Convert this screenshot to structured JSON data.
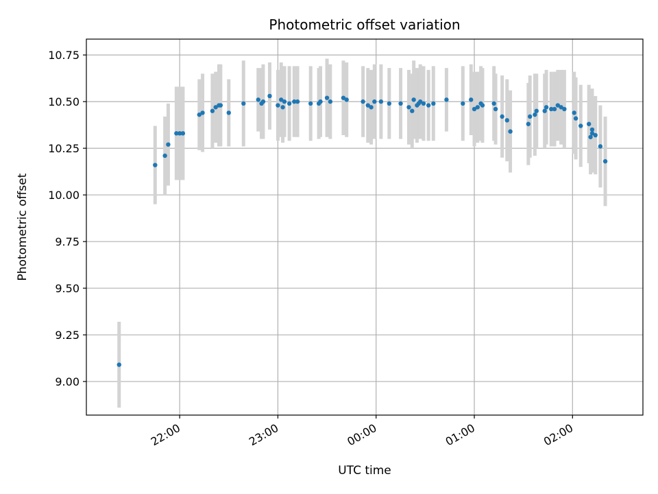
{
  "chart_data": {
    "type": "scatter",
    "title": "Photometric offset variation",
    "xlabel": "UTC time",
    "ylabel": "Photometric offset",
    "xlim": [
      "2023-01-01T21:03",
      "2023-01-02T02:43"
    ],
    "ylim": [
      8.82,
      10.835
    ],
    "x_ticks": [
      {
        "time": "2023-01-01T22:00",
        "label": "22:00"
      },
      {
        "time": "2023-01-01T23:00",
        "label": "23:00"
      },
      {
        "time": "2023-01-02T00:00",
        "label": "00:00"
      },
      {
        "time": "2023-01-02T01:00",
        "label": "01:00"
      },
      {
        "time": "2023-01-02T02:00",
        "label": "02:00"
      }
    ],
    "y_ticks": [
      {
        "value": 9.0,
        "label": "9.00"
      },
      {
        "value": 9.25,
        "label": "9.25"
      },
      {
        "value": 9.5,
        "label": "9.50"
      },
      {
        "value": 9.75,
        "label": "9.75"
      },
      {
        "value": 10.0,
        "label": "10.00"
      },
      {
        "value": 10.25,
        "label": "10.25"
      },
      {
        "value": 10.5,
        "label": "10.50"
      },
      {
        "value": 10.75,
        "label": "10.75"
      }
    ],
    "grid": true,
    "colors": {
      "marker": "#1f77b4",
      "errorbar": "#d3d3d3",
      "grid": "#b0b0b0"
    },
    "series": [
      {
        "x": [
          "2023-01-01T21:23",
          "2023-01-01T21:45",
          "2023-01-01T21:51",
          "2023-01-01T21:53",
          "2023-01-01T21:58",
          "2023-01-01T22:00",
          "2023-01-01T22:02",
          "2023-01-01T22:12",
          "2023-01-01T22:14",
          "2023-01-01T22:20",
          "2023-01-01T22:22",
          "2023-01-01T22:24",
          "2023-01-01T22:25",
          "2023-01-01T22:30",
          "2023-01-01T22:39",
          "2023-01-01T22:48",
          "2023-01-01T22:50",
          "2023-01-01T22:51",
          "2023-01-01T22:55",
          "2023-01-01T23:00",
          "2023-01-01T23:02",
          "2023-01-01T23:03",
          "2023-01-01T23:04",
          "2023-01-01T23:07",
          "2023-01-01T23:10",
          "2023-01-01T23:12",
          "2023-01-01T23:20",
          "2023-01-01T23:25",
          "2023-01-01T23:26",
          "2023-01-01T23:30",
          "2023-01-01T23:32",
          "2023-01-01T23:40",
          "2023-01-01T23:42",
          "2023-01-01T23:52",
          "2023-01-01T23:55",
          "2023-01-01T23:57",
          "2023-01-01T23:59",
          "2023-01-02T00:03",
          "2023-01-02T00:08",
          "2023-01-02T00:15",
          "2023-01-02T00:20",
          "2023-01-02T00:22",
          "2023-01-02T00:23",
          "2023-01-02T00:25",
          "2023-01-02T00:26",
          "2023-01-02T00:27",
          "2023-01-02T00:29",
          "2023-01-02T00:32",
          "2023-01-02T00:35",
          "2023-01-02T00:43",
          "2023-01-02T00:53",
          "2023-01-02T00:58",
          "2023-01-02T01:00",
          "2023-01-02T01:02",
          "2023-01-02T01:04",
          "2023-01-02T01:05",
          "2023-01-02T01:12",
          "2023-01-02T01:13",
          "2023-01-02T01:17",
          "2023-01-02T01:20",
          "2023-01-02T01:22",
          "2023-01-02T01:33",
          "2023-01-02T01:34",
          "2023-01-02T01:37",
          "2023-01-02T01:38",
          "2023-01-02T01:43",
          "2023-01-02T01:44",
          "2023-01-02T01:47",
          "2023-01-02T01:49",
          "2023-01-02T01:51",
          "2023-01-02T01:53",
          "2023-01-02T01:55",
          "2023-01-02T02:01",
          "2023-01-02T02:02",
          "2023-01-02T02:05",
          "2023-01-02T02:10",
          "2023-01-02T02:11",
          "2023-01-02T02:12",
          "2023-01-02T02:12",
          "2023-01-02T02:14",
          "2023-01-02T02:17",
          "2023-01-02T02:20"
        ],
        "y": [
          9.09,
          10.16,
          10.21,
          10.27,
          10.33,
          10.33,
          10.33,
          10.43,
          10.44,
          10.45,
          10.47,
          10.48,
          10.48,
          10.44,
          10.49,
          10.51,
          10.49,
          10.5,
          10.53,
          10.48,
          10.51,
          10.47,
          10.5,
          10.49,
          10.5,
          10.5,
          10.49,
          10.49,
          10.5,
          10.52,
          10.5,
          10.52,
          10.51,
          10.5,
          10.48,
          10.47,
          10.5,
          10.5,
          10.49,
          10.49,
          10.47,
          10.45,
          10.51,
          10.48,
          10.49,
          10.5,
          10.49,
          10.48,
          10.49,
          10.51,
          10.49,
          10.51,
          10.46,
          10.47,
          10.49,
          10.48,
          10.49,
          10.46,
          10.42,
          10.4,
          10.34,
          10.38,
          10.42,
          10.43,
          10.45,
          10.45,
          10.47,
          10.46,
          10.46,
          10.48,
          10.47,
          10.46,
          10.44,
          10.41,
          10.37,
          10.38,
          10.31,
          10.35,
          10.33,
          10.32,
          10.26,
          10.18
        ],
        "yerr": [
          0.23,
          0.21,
          0.21,
          0.22,
          0.25,
          0.25,
          0.25,
          0.19,
          0.21,
          0.2,
          0.19,
          0.22,
          0.22,
          0.18,
          0.23,
          0.17,
          0.19,
          0.2,
          0.18,
          0.19,
          0.2,
          0.19,
          0.19,
          0.2,
          0.19,
          0.19,
          0.2,
          0.19,
          0.19,
          0.21,
          0.2,
          0.2,
          0.2,
          0.19,
          0.2,
          0.2,
          0.2,
          0.2,
          0.19,
          0.19,
          0.2,
          0.2,
          0.21,
          0.2,
          0.19,
          0.2,
          0.2,
          0.19,
          0.2,
          0.17,
          0.2,
          0.19,
          0.2,
          0.19,
          0.2,
          0.2,
          0.2,
          0.19,
          0.22,
          0.22,
          0.22,
          0.22,
          0.22,
          0.22,
          0.2,
          0.2,
          0.2,
          0.2,
          0.2,
          0.19,
          0.2,
          0.21,
          0.22,
          0.22,
          0.22,
          0.21,
          0.2,
          0.22,
          0.21,
          0.21,
          0.22,
          0.24
        ]
      }
    ]
  }
}
